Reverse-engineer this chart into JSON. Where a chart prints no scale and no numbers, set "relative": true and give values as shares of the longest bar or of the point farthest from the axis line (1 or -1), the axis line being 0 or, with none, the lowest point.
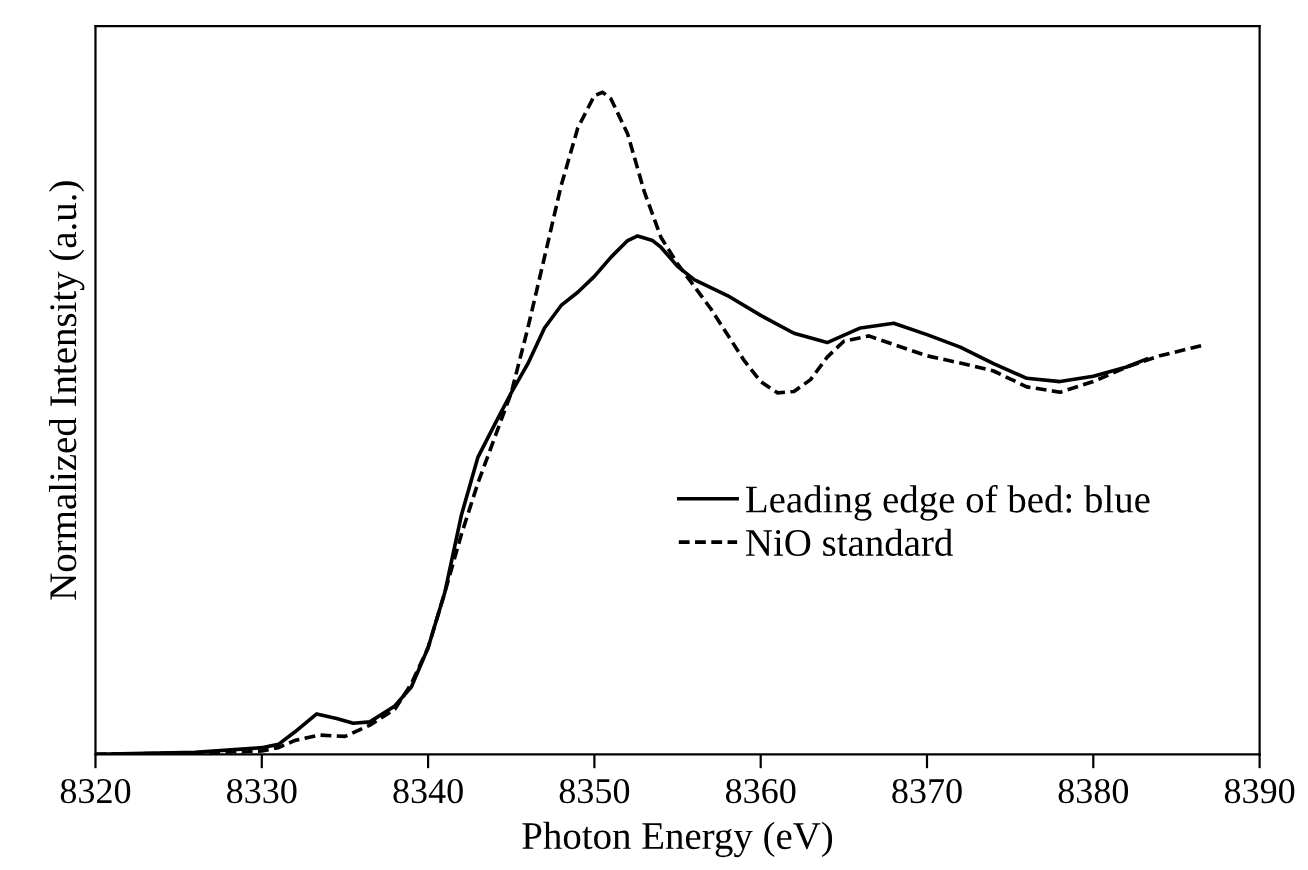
{
  "chart_data": {
    "type": "line",
    "relative": true,
    "xlabel": "Photon Energy (eV)",
    "ylabel": "Normalized Intensity (a.u.)",
    "xlim": [
      8320,
      8390
    ],
    "xticks": [
      8320,
      8330,
      8340,
      8350,
      8360,
      8370,
      8380,
      8390
    ],
    "grid": false,
    "legend": "lower right",
    "marker": "none",
    "series": [
      {
        "name": "Leading edge of bed: blue",
        "color": "#000000",
        "line_style": "solid",
        "x": [
          8320,
          8326,
          8330,
          8331,
          8332,
          8333.3,
          8334.5,
          8335.5,
          8336.5,
          8338,
          8339,
          8340,
          8341,
          8342,
          8343,
          8344,
          8345,
          8346,
          8347,
          8348,
          8349,
          8350,
          8351,
          8352,
          8352.6,
          8353.5,
          8354,
          8355,
          8356,
          8358,
          8360,
          8362,
          8364,
          8366,
          8368,
          8370,
          8372,
          8374,
          8376,
          8378,
          8380,
          8382,
          8383.2
        ],
        "values": [
          0,
          0.003,
          0.01,
          0.015,
          0.034,
          0.061,
          0.054,
          0.047,
          0.049,
          0.073,
          0.102,
          0.161,
          0.244,
          0.361,
          0.449,
          0.498,
          0.546,
          0.59,
          0.644,
          0.678,
          0.698,
          0.722,
          0.751,
          0.776,
          0.783,
          0.776,
          0.766,
          0.737,
          0.717,
          0.693,
          0.663,
          0.636,
          0.622,
          0.644,
          0.651,
          0.634,
          0.615,
          0.59,
          0.568,
          0.563,
          0.571,
          0.585,
          0.597
        ]
      },
      {
        "name": "NiO standard",
        "color": "#000000",
        "line_style": "dashed",
        "x": [
          8320,
          8326,
          8330,
          8331,
          8332,
          8333.5,
          8335,
          8336.5,
          8338,
          8339,
          8340,
          8341,
          8342,
          8343,
          8344,
          8345,
          8346,
          8347,
          8348,
          8349,
          8350,
          8350.5,
          8351,
          8352,
          8353,
          8354,
          8355,
          8356,
          8357,
          8358,
          8359,
          8360,
          8361,
          8362,
          8363,
          8364,
          8365,
          8366.5,
          8368,
          8370,
          8372,
          8374,
          8376,
          8378,
          8380,
          8382,
          8384,
          8386.8
        ],
        "values": [
          0,
          0.002,
          0.005,
          0.01,
          0.021,
          0.029,
          0.027,
          0.044,
          0.068,
          0.107,
          0.161,
          0.244,
          0.332,
          0.41,
          0.478,
          0.546,
          0.644,
          0.751,
          0.859,
          0.946,
          0.995,
          1.0,
          0.99,
          0.937,
          0.85,
          0.781,
          0.741,
          0.707,
          0.673,
          0.634,
          0.595,
          0.563,
          0.546,
          0.548,
          0.566,
          0.6,
          0.624,
          0.632,
          0.619,
          0.602,
          0.591,
          0.579,
          0.555,
          0.547,
          0.563,
          0.585,
          0.602,
          0.619
        ]
      }
    ]
  }
}
